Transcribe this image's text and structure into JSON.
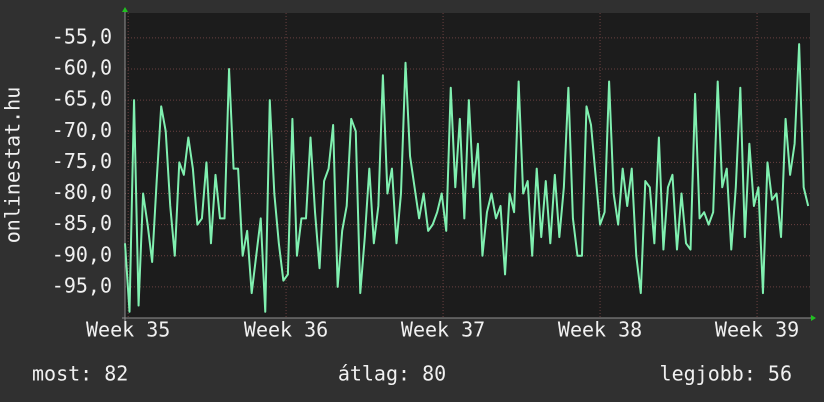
{
  "chart_data": {
    "type": "line",
    "ylabel": "onlinestat.hu",
    "series": [
      {
        "color": "#80f0b0",
        "values": [
          -88,
          -99,
          -65,
          -98,
          -80,
          -85,
          -91,
          -78,
          -66,
          -70,
          -82,
          -90,
          -75,
          -77,
          -71,
          -76,
          -85,
          -84,
          -75,
          -88,
          -77,
          -84,
          -84,
          -60,
          -76,
          -76,
          -90,
          -86,
          -96,
          -90,
          -84,
          -99,
          -65,
          -80,
          -88,
          -94,
          -93,
          -68,
          -90,
          -84,
          -84,
          -71,
          -83,
          -92,
          -78,
          -76,
          -69,
          -95,
          -86,
          -82,
          -68,
          -70,
          -96,
          -87,
          -76,
          -88,
          -82,
          -61,
          -80,
          -76,
          -88,
          -80,
          -59,
          -74,
          -79,
          -84,
          -80,
          -86,
          -85,
          -83,
          -80,
          -86,
          -63,
          -79,
          -68,
          -84,
          -65,
          -79,
          -72,
          -90,
          -83,
          -80,
          -84,
          -82,
          -93,
          -80,
          -83,
          -62,
          -80,
          -78,
          -90,
          -76,
          -87,
          -78,
          -88,
          -77,
          -87,
          -79,
          -63,
          -84,
          -90,
          -90,
          -66,
          -69,
          -77,
          -85,
          -83,
          -62,
          -80,
          -85,
          -76,
          -82,
          -76,
          -90,
          -96,
          -78,
          -79,
          -88,
          -71,
          -89,
          -79,
          -77,
          -89,
          -80,
          -88,
          -89,
          -64,
          -84,
          -83,
          -85,
          -83,
          -62,
          -79,
          -76,
          -89,
          -79,
          -63,
          -87,
          -72,
          -82,
          -79,
          -96,
          -75,
          -81,
          -80,
          -87,
          -68,
          -77,
          -72,
          -56,
          -79,
          -82
        ]
      }
    ],
    "xlim": [
      0,
      151.4
    ],
    "xticks": [
      {
        "value": 0.7,
        "label": "Week 35"
      },
      {
        "value": 35.6,
        "label": "Week 36"
      },
      {
        "value": 70.3,
        "label": "Week 37"
      },
      {
        "value": 105,
        "label": "Week 38"
      },
      {
        "value": 139.7,
        "label": "Week 39"
      }
    ],
    "ylim": [
      -100,
      -51
    ],
    "yticks": [
      {
        "value": -95,
        "label": "-95,0"
      },
      {
        "value": -90,
        "label": "-90,0"
      },
      {
        "value": -85,
        "label": "-85,0"
      },
      {
        "value": -80,
        "label": "-80,0"
      },
      {
        "value": -75,
        "label": "-75,0"
      },
      {
        "value": -70,
        "label": "-70,0"
      },
      {
        "value": -65,
        "label": "-65,0"
      },
      {
        "value": -60,
        "label": "-60,0"
      },
      {
        "value": -55,
        "label": "-55,0"
      }
    ],
    "grid": true,
    "footer": {
      "current": "most: 82",
      "average": "átlag: 80",
      "best": "legjobb: 56"
    }
  }
}
